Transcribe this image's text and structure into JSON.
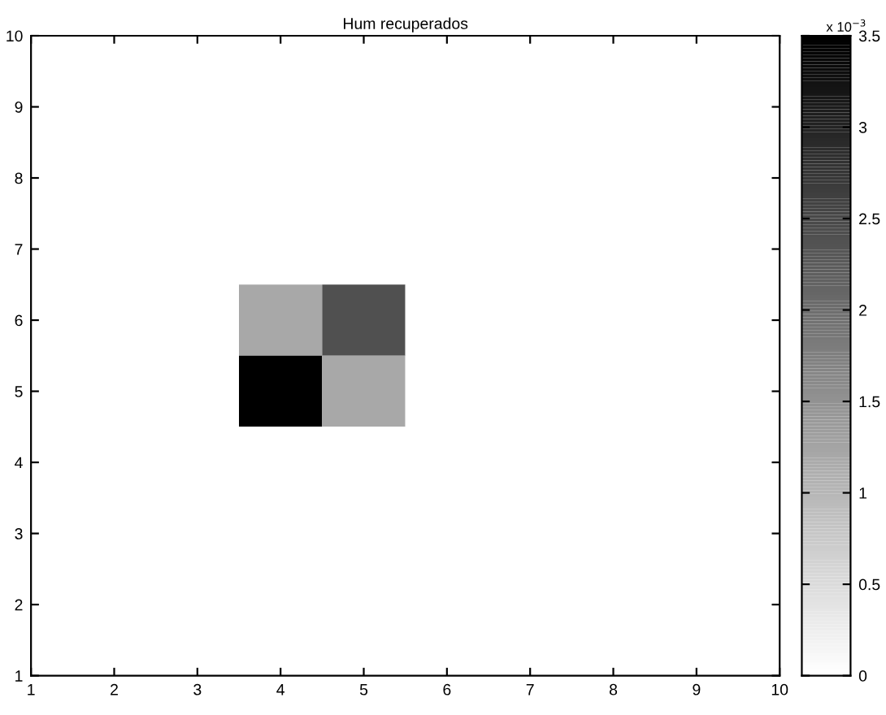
{
  "chart_data": {
    "type": "heatmap",
    "title": "Hum recuperados",
    "clabel": "x 10$^{−3}$",
    "categories": [
      "1",
      "2",
      "3",
      "4",
      "5",
      "6",
      "7",
      "8",
      "9",
      "10"
    ],
    "y_categories": [
      "10",
      "9",
      "8",
      "7",
      "6",
      "5",
      "4",
      "3",
      "2",
      "1"
    ],
    "cells": [
      [
        0,
        0,
        0,
        0,
        0,
        0,
        0,
        0,
        0,
        0
      ],
      [
        0,
        0,
        0,
        0,
        0,
        0,
        0,
        0,
        0,
        0
      ],
      [
        0,
        0,
        0,
        0,
        0,
        0,
        0,
        0,
        0,
        0
      ],
      [
        0,
        0,
        0,
        0,
        0,
        0,
        0,
        0,
        0,
        0
      ],
      [
        0,
        0,
        0,
        1.2,
        2.4,
        0,
        0,
        0,
        0,
        0
      ],
      [
        0,
        0,
        0,
        3.5,
        1.2,
        0,
        0,
        0,
        0,
        0
      ],
      [
        0,
        0,
        0,
        0,
        0,
        0,
        0,
        0,
        0,
        0
      ],
      [
        0,
        0,
        0,
        0,
        0,
        0,
        0,
        0,
        0,
        0
      ],
      [
        0,
        0,
        0,
        0,
        0,
        0,
        0,
        0,
        0,
        0
      ],
      [
        0,
        0,
        0,
        0,
        0,
        0,
        0,
        0,
        0,
        0
      ]
    ],
    "clim": [
      0,
      3.5
    ],
    "cticks": [
      0,
      0.5,
      1,
      1.5,
      2,
      2.5,
      3,
      3.5
    ],
    "grid": false
  }
}
